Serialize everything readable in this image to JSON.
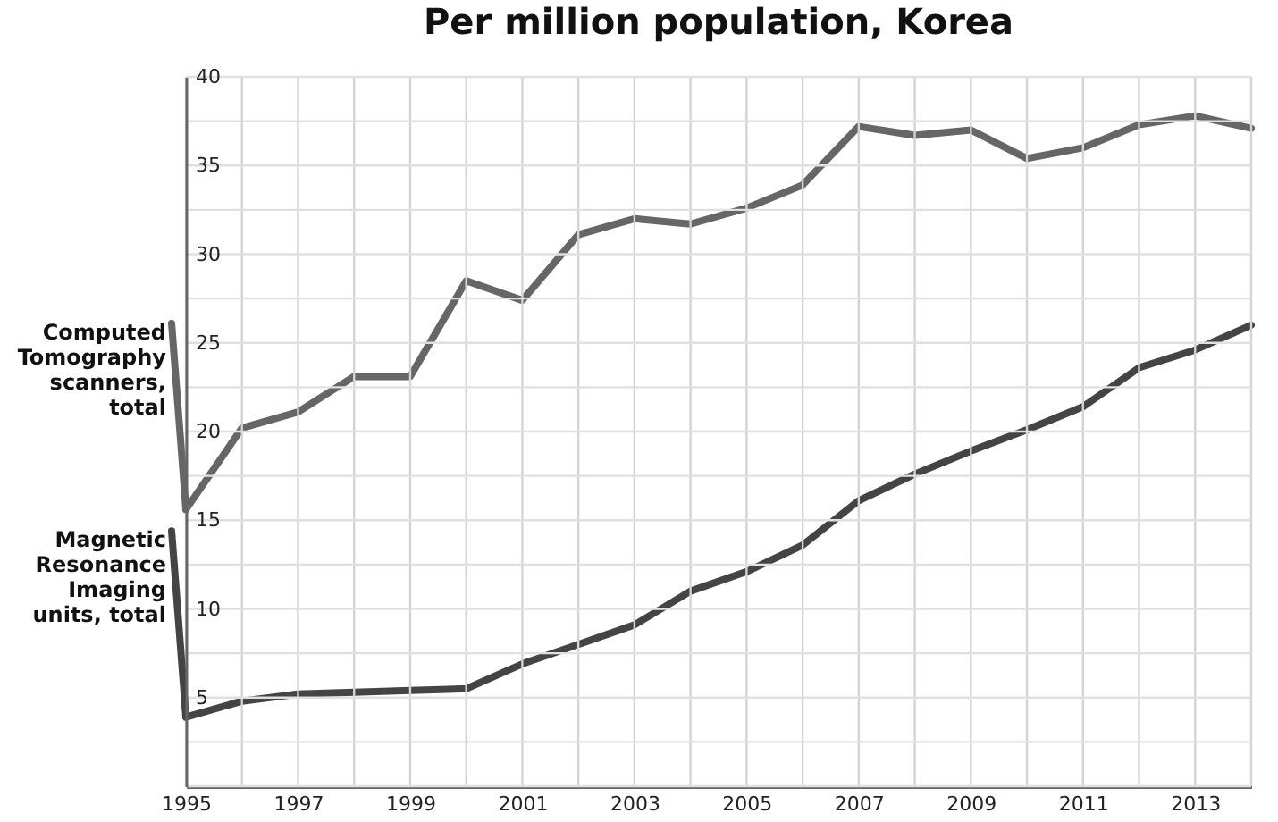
{
  "chart_data": {
    "type": "line",
    "title": "Per million population, Korea",
    "x": [
      1995,
      1996,
      1997,
      1998,
      1999,
      2000,
      2001,
      2002,
      2003,
      2004,
      2005,
      2006,
      2007,
      2008,
      2009,
      2010,
      2011,
      2012,
      2013,
      2014
    ],
    "series": [
      {
        "name": "Computed Tomography scanners, total",
        "color": "#666666",
        "values": [
          15.6,
          20.2,
          21.1,
          23.1,
          23.1,
          28.5,
          27.4,
          31.1,
          32.0,
          31.7,
          32.6,
          33.9,
          37.2,
          36.7,
          37.0,
          35.4,
          36.0,
          37.3,
          37.8,
          37.1
        ]
      },
      {
        "name": "Magnetic Resonance Imaging units, total",
        "color": "#444444",
        "values": [
          3.9,
          4.8,
          5.2,
          5.3,
          5.4,
          5.5,
          6.9,
          8.0,
          9.1,
          11.0,
          12.1,
          13.6,
          16.1,
          17.6,
          18.9,
          20.1,
          21.4,
          23.6,
          24.6,
          26.0
        ]
      }
    ],
    "xlim": [
      1995,
      2014
    ],
    "xticks": [
      1995,
      {
        "value": 1996,
        "label": null
      },
      1997,
      {
        "value": 1998,
        "label": null
      },
      1999,
      {
        "value": 2000,
        "label": null
      },
      2001,
      {
        "value": 2002,
        "label": null
      },
      2003,
      {
        "value": 2004,
        "label": null
      },
      2005,
      {
        "value": 2006,
        "label": null
      },
      2007,
      {
        "value": 2008,
        "label": null
      },
      2009,
      {
        "value": 2010,
        "label": null
      },
      2011,
      {
        "value": 2012,
        "label": null
      },
      2013,
      {
        "value": 2014,
        "label": null
      }
    ],
    "ylim": [
      0,
      40
    ],
    "yticks": [
      {
        "value": 0,
        "label": null
      },
      {
        "value": 2.5,
        "label": null
      },
      5,
      {
        "value": 7.5,
        "label": null
      },
      10,
      {
        "value": 12.5,
        "label": null
      },
      15,
      {
        "value": 17.5,
        "label": null
      },
      20,
      {
        "value": 22.5,
        "label": null
      },
      25,
      {
        "value": 27.5,
        "label": null
      },
      30,
      {
        "value": 32.5,
        "label": null
      },
      35,
      {
        "value": 37.5,
        "label": null
      },
      40
    ],
    "grid": true
  }
}
